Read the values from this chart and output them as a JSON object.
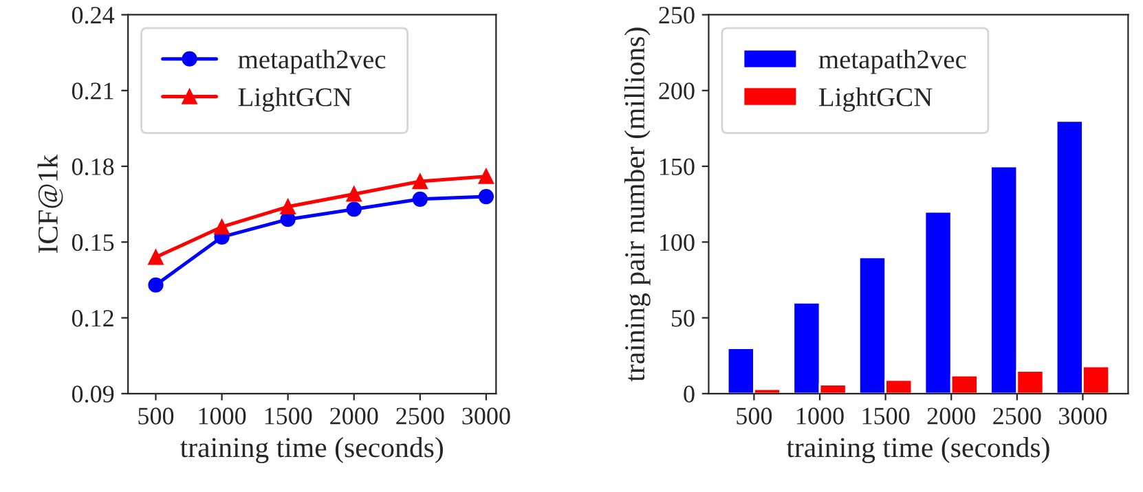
{
  "chart_data": [
    {
      "type": "line",
      "xlabel": "training time (seconds)",
      "ylabel": "ICF@1k",
      "x": [
        500,
        1000,
        1500,
        2000,
        2500,
        3000
      ],
      "xlim": [
        290,
        3075
      ],
      "xticks": [
        500,
        1000,
        1500,
        2000,
        2500,
        3000
      ],
      "ylim": [
        0.09,
        0.24
      ],
      "yticks": [
        {
          "value": 0.09,
          "label": "0.09"
        },
        {
          "value": 0.12,
          "label": "0.12"
        },
        {
          "value": 0.15,
          "label": "0.15"
        },
        {
          "value": 0.18,
          "label": "0.18"
        },
        {
          "value": 0.21,
          "label": "0.21"
        },
        {
          "value": 0.24,
          "label": "0.24"
        }
      ],
      "legend": "top left",
      "series": [
        {
          "name": "metapath2vec",
          "color": "#0000ff",
          "marker": "circle",
          "values": [
            0.133,
            0.152,
            0.159,
            0.163,
            0.167,
            0.168
          ]
        },
        {
          "name": "LightGCN",
          "color": "#ff0000",
          "marker": "triangle",
          "values": [
            0.144,
            0.156,
            0.164,
            0.169,
            0.174,
            0.176
          ]
        }
      ]
    },
    {
      "type": "bar",
      "xlabel": "training time (seconds)",
      "ylabel": "training pair number (millions)",
      "categories": [
        "500",
        "1000",
        "1500",
        "2000",
        "2500",
        "3000"
      ],
      "ylim": [
        0,
        250
      ],
      "yticks": [
        0,
        50,
        100,
        150,
        200,
        250
      ],
      "legend": "top left",
      "series": [
        {
          "name": "metapath2vec",
          "color": "#0000ff",
          "values": [
            30,
            60,
            90,
            120,
            150,
            180
          ]
        },
        {
          "name": "LightGCN",
          "color": "#ff0000",
          "values": [
            3,
            6,
            9,
            12,
            15,
            18
          ]
        }
      ]
    }
  ]
}
